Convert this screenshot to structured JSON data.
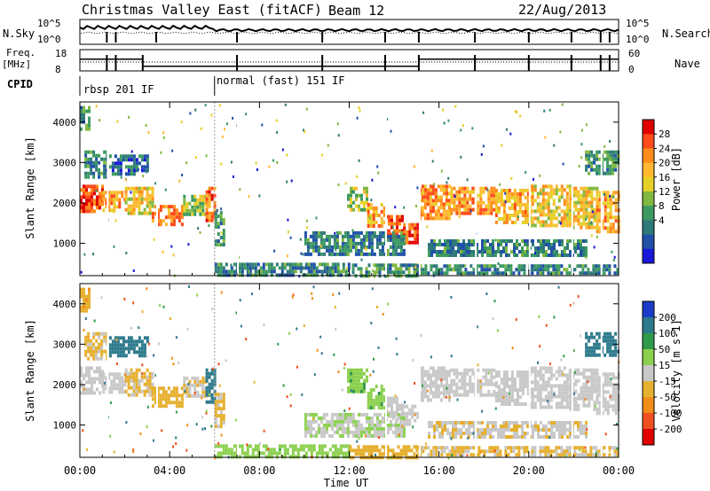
{
  "chart_data": {
    "type": "heatmap",
    "title": "Christmas Valley East (fitACF)",
    "beam": "Beam 12",
    "date": "22/Aug/2013",
    "xlabel": "Time UT",
    "x_ticks": [
      "00:00",
      "04:00",
      "08:00",
      "12:00",
      "16:00",
      "20:00",
      "00:00"
    ],
    "x_range_hours": [
      0,
      24
    ],
    "top_panels": {
      "nsky": {
        "label": "N.Sky",
        "ticks": [
          "10^5",
          "10^0"
        ]
      },
      "nsearch": {
        "label": "N.Search",
        "ticks": [
          "10^5",
          "10^0"
        ]
      },
      "freq": {
        "label_line1": "Freq.",
        "label_line2": "[MHz]",
        "ticks": [
          "18",
          "8"
        ]
      },
      "nave": {
        "label": "Nave",
        "ticks": [
          "60",
          "0"
        ]
      },
      "cpid": {
        "label": "CPID",
        "segments": [
          {
            "text": "rbsp 201 IF",
            "start_hour": 0,
            "end_hour": 6
          },
          {
            "text": "normal (fast) 151 IF",
            "start_hour": 6,
            "end_hour": 24
          }
        ]
      },
      "freq_series_hours": [
        0,
        2.8,
        2.8,
        15.1,
        15.1,
        24
      ],
      "freq_series_mhz": [
        13.5,
        13.5,
        10.2,
        10.2,
        13.5,
        13.5
      ]
    },
    "panels": [
      {
        "name": "power",
        "ylabel": "Slant Range [km]",
        "y_ticks": [
          "4000",
          "3000",
          "2000",
          "1000"
        ],
        "ylim": [
          200,
          4500
        ],
        "colorbar_label": "Power [dB]",
        "colorbar_ticks": [
          "28",
          "24",
          "20",
          "16",
          "12",
          "8",
          "4"
        ],
        "colorbar_colors": [
          "#e00000",
          "#ff4a1a",
          "#ff8c1a",
          "#ffb830",
          "#e6d028",
          "#80b840",
          "#3c9a60",
          "#2e7a78",
          "#2050a8",
          "#1818d8"
        ]
      },
      {
        "name": "velocity",
        "ylabel": "Slant Range [km]",
        "y_ticks": [
          "4000",
          "3000",
          "2000",
          "1000"
        ],
        "ylim": [
          200,
          4500
        ],
        "colorbar_label": "Velocity [m s-1]",
        "colorbar_ticks": [
          "200",
          "100",
          "50",
          "15",
          "-15",
          "-50",
          "-100",
          "-200"
        ],
        "colorbar_colors": [
          "#1a3cc8",
          "#2e7a8c",
          "#2f9a4a",
          "#8cd050",
          "#c8c8c8",
          "#e6b030",
          "#f08c1a",
          "#f05020",
          "#e00000"
        ]
      }
    ],
    "echo_regions": [
      {
        "h0": 0.0,
        "h1": 1.0,
        "r0": 1750,
        "r1": 2450,
        "power": 26,
        "vel": 0
      },
      {
        "h0": 1.0,
        "h1": 2.0,
        "r0": 1800,
        "r1": 2300,
        "power": 20,
        "vel": 0
      },
      {
        "h0": 2.0,
        "h1": 3.2,
        "r0": 1750,
        "r1": 2400,
        "power": 18,
        "vel": -20
      },
      {
        "h0": 3.2,
        "h1": 4.6,
        "r0": 1500,
        "r1": 1950,
        "power": 22,
        "vel": -30
      },
      {
        "h0": 4.6,
        "h1": 5.6,
        "r0": 1700,
        "r1": 2200,
        "power": 14,
        "vel": -10
      },
      {
        "h0": 5.6,
        "h1": 6.0,
        "r0": 1600,
        "r1": 2400,
        "power": 24,
        "vel": 180
      },
      {
        "h0": 6.0,
        "h1": 6.4,
        "r0": 1000,
        "r1": 1800,
        "power": 10,
        "vel": -20
      },
      {
        "h0": 0.2,
        "h1": 1.2,
        "r0": 2600,
        "r1": 3300,
        "power": 8,
        "vel": -20
      },
      {
        "h0": 0.0,
        "h1": 0.4,
        "r0": 3800,
        "r1": 4400,
        "power": 10,
        "vel": -40
      },
      {
        "h0": 1.3,
        "h1": 3.0,
        "r0": 2700,
        "r1": 3200,
        "power": 6,
        "vel": 150
      },
      {
        "h0": 6.0,
        "h1": 12.0,
        "r0": 250,
        "r1": 520,
        "power": 8,
        "vel": 30
      },
      {
        "h0": 12.0,
        "h1": 15.0,
        "r0": 220,
        "r1": 500,
        "power": 10,
        "vel": -30
      },
      {
        "h0": 15.0,
        "h1": 24.0,
        "r0": 220,
        "r1": 480,
        "power": 8,
        "vel": -20
      },
      {
        "h0": 11.9,
        "h1": 12.8,
        "r0": 1800,
        "r1": 2400,
        "power": 14,
        "vel": 40
      },
      {
        "h0": 12.8,
        "h1": 13.6,
        "r0": 1400,
        "r1": 2000,
        "power": 20,
        "vel": 40
      },
      {
        "h0": 13.6,
        "h1": 14.4,
        "r0": 1100,
        "r1": 1700,
        "power": 26,
        "vel": 0
      },
      {
        "h0": 14.4,
        "h1": 15.1,
        "r0": 1000,
        "r1": 1500,
        "power": 26,
        "vel": 0
      },
      {
        "h0": 15.1,
        "h1": 16.5,
        "r0": 1600,
        "r1": 2450,
        "power": 22,
        "vel": 0
      },
      {
        "h0": 16.5,
        "h1": 18.5,
        "r0": 1700,
        "r1": 2400,
        "power": 22,
        "vel": 0
      },
      {
        "h0": 18.5,
        "h1": 20.0,
        "r0": 1500,
        "r1": 2350,
        "power": 20,
        "vel": 0
      },
      {
        "h0": 20.0,
        "h1": 21.8,
        "r0": 1400,
        "r1": 2450,
        "power": 18,
        "vel": 0
      },
      {
        "h0": 21.8,
        "h1": 23.0,
        "r0": 1400,
        "r1": 2400,
        "power": 18,
        "vel": 0
      },
      {
        "h0": 23.0,
        "h1": 24.0,
        "r0": 1300,
        "r1": 2300,
        "power": 20,
        "vel": 0
      },
      {
        "h0": 10.0,
        "h1": 14.5,
        "r0": 700,
        "r1": 1300,
        "power": 8,
        "vel": 10
      },
      {
        "h0": 15.5,
        "h1": 22.5,
        "r0": 700,
        "r1": 1100,
        "power": 8,
        "vel": -10
      },
      {
        "h0": 22.5,
        "h1": 24.0,
        "r0": 2700,
        "r1": 3300,
        "power": 10,
        "vel": 160
      }
    ]
  }
}
